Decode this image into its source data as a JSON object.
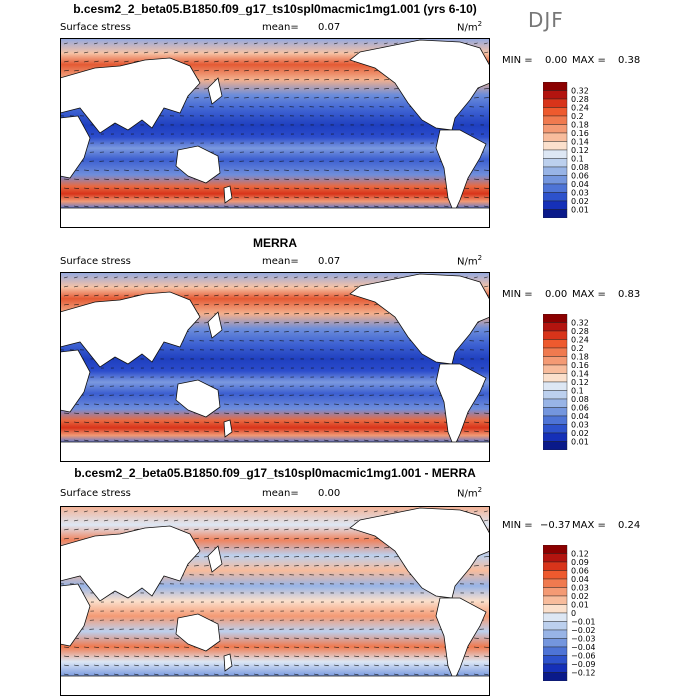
{
  "season": "DJF",
  "panels": [
    {
      "title": "b.cesm2_2_beta05.B1850.f09_g17_ts10spl0macmic1mg1.001 (yrs 6-10)",
      "variable": "Surface stress",
      "mean_label": "mean=",
      "mean": "0.07",
      "units": "N/m",
      "units_sup": "2",
      "min_label": "MIN =",
      "min": "0.00",
      "max_label": "MAX =",
      "max": "0.38",
      "levels": [
        "0.32",
        "0.28",
        "0.24",
        "0.2",
        "0.18",
        "0.16",
        "0.14",
        "0.12",
        "0.1",
        "0.08",
        "0.06",
        "0.04",
        "0.03",
        "0.02",
        "0.01"
      ],
      "colors": [
        "#8b0000",
        "#b3140f",
        "#d8341a",
        "#ee5a2e",
        "#f07a4f",
        "#f49a74",
        "#f8bc9c",
        "#fbe0cc",
        "#dde7f4",
        "#bcd0ee",
        "#98b4e6",
        "#7496de",
        "#4e74d6",
        "#2d52cc",
        "#1530b8",
        "#0a1a8a"
      ]
    },
    {
      "title": "MERRA",
      "variable": "Surface stress",
      "mean_label": "mean=",
      "mean": "0.07",
      "units": "N/m",
      "units_sup": "2",
      "min_label": "MIN =",
      "min": "0.00",
      "max_label": "MAX =",
      "max": "0.83",
      "levels": [
        "0.32",
        "0.28",
        "0.24",
        "0.2",
        "0.18",
        "0.16",
        "0.14",
        "0.12",
        "0.1",
        "0.08",
        "0.06",
        "0.04",
        "0.03",
        "0.02",
        "0.01"
      ],
      "colors": [
        "#8b0000",
        "#b3140f",
        "#d8341a",
        "#ee5a2e",
        "#f07a4f",
        "#f49a74",
        "#f8bc9c",
        "#fbe0cc",
        "#dde7f4",
        "#bcd0ee",
        "#98b4e6",
        "#7496de",
        "#4e74d6",
        "#2d52cc",
        "#1530b8",
        "#0a1a8a"
      ]
    },
    {
      "title": "b.cesm2_2_beta05.B1850.f09_g17_ts10spl0macmic1mg1.001 - MERRA",
      "variable": "Surface stress",
      "mean_label": "mean=",
      "mean": "0.00",
      "units": "N/m",
      "units_sup": "2",
      "min_label": "MIN =",
      "min": "−0.37",
      "max_label": "MAX =",
      "max": "0.24",
      "levels": [
        "0.12",
        "0.09",
        "0.06",
        "0.04",
        "0.03",
        "0.02",
        "0.01",
        "0",
        "−0.01",
        "−0.02",
        "−0.03",
        "−0.04",
        "−0.06",
        "−0.09",
        "−0.12"
      ],
      "colors": [
        "#8b0000",
        "#b3140f",
        "#d8341a",
        "#ee5a2e",
        "#f07a4f",
        "#f49a74",
        "#f8bc9c",
        "#fbe0cc",
        "#dde7f4",
        "#bcd0ee",
        "#98b4e6",
        "#7496de",
        "#4e74d6",
        "#2d52cc",
        "#1530b8",
        "#0a1a8a"
      ]
    }
  ]
}
